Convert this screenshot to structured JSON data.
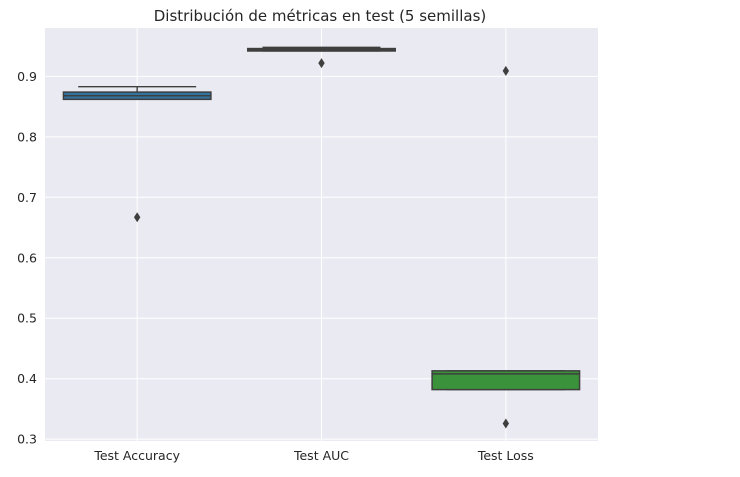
{
  "chart_data": {
    "type": "box",
    "title": "Distribución de métricas en test (5 semillas)",
    "xlabel": "",
    "ylabel": "",
    "ylim": [
      0.297,
      0.98
    ],
    "yticks": [
      "0.3",
      "0.4",
      "0.5",
      "0.6",
      "0.7",
      "0.8",
      "0.9"
    ],
    "grid": true,
    "legend": "none",
    "categories": [
      "Test Accuracy",
      "Test AUC",
      "Test Loss"
    ],
    "boxes": [
      {
        "category": "Test Accuracy",
        "color": "#3274a1",
        "whislo": 0.862,
        "q1": 0.862,
        "med": 0.868,
        "q3": 0.874,
        "whishi": 0.883,
        "fliers": [
          0.667
        ]
      },
      {
        "category": "Test AUC",
        "color": "#e1812c",
        "whislo": 0.942,
        "q1": 0.942,
        "med": 0.944,
        "q3": 0.946,
        "whishi": 0.948,
        "fliers": [
          0.922
        ]
      },
      {
        "category": "Test Loss",
        "color": "#3a923a",
        "whislo": 0.382,
        "q1": 0.382,
        "med": 0.408,
        "q3": 0.413,
        "whishi": 0.413,
        "fliers": [
          0.909,
          0.326
        ]
      }
    ]
  }
}
